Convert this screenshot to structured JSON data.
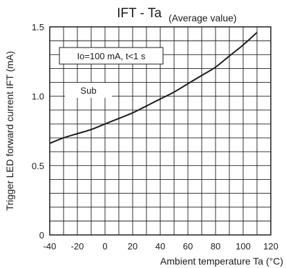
{
  "chart_data": {
    "type": "line",
    "title": "IFT - Ta",
    "subtitle": "(Average value)",
    "xlabel": "Ambient temperature Ta (°C)",
    "ylabel": "Trigger LED forward current IFT (mA)",
    "xlim": [
      -40,
      120
    ],
    "ylim": [
      0,
      1.5
    ],
    "x_ticks": [
      -40,
      -20,
      0,
      20,
      40,
      60,
      80,
      100,
      120
    ],
    "x_tick_labels": [
      "-40",
      "-20",
      "0",
      "20",
      "40",
      "60",
      "80",
      "100",
      "120"
    ],
    "y_ticks": [
      0,
      0.5,
      1.0,
      1.5
    ],
    "y_tick_labels": [
      "0",
      "0.5",
      "1.0",
      "1.5"
    ],
    "grid": true,
    "annotations": [
      "Io=100 mA, t<1 s",
      "Sub"
    ],
    "series": [
      {
        "x": [
          -40,
          -30,
          -20,
          -10,
          0,
          10,
          20,
          30,
          40,
          50,
          60,
          70,
          80,
          90,
          100,
          110
        ],
        "y": [
          0.66,
          0.7,
          0.73,
          0.76,
          0.8,
          0.84,
          0.88,
          0.93,
          0.98,
          1.03,
          1.09,
          1.15,
          1.21,
          1.29,
          1.37,
          1.46
        ]
      }
    ]
  },
  "colors": {
    "line": "#1a1a1a",
    "grid": "#1a1a1a",
    "background": "#ffffff"
  }
}
